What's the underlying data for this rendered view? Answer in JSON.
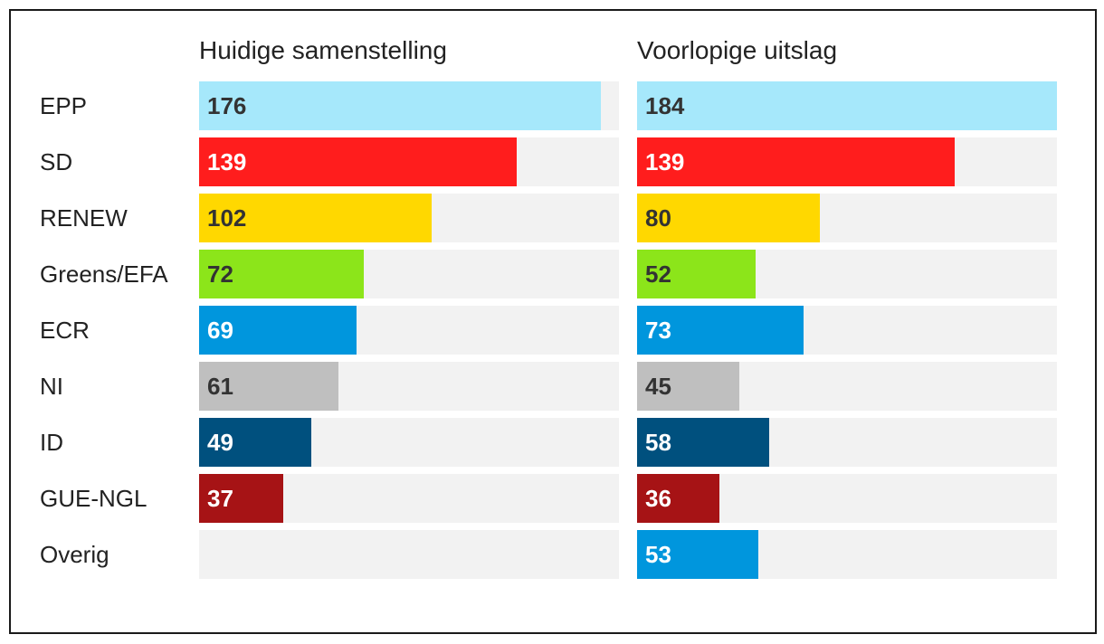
{
  "chart_data": {
    "type": "bar",
    "categories": [
      "EPP",
      "SD",
      "RENEW",
      "Greens/EFA",
      "ECR",
      "NI",
      "ID",
      "GUE-NGL",
      "Overig"
    ],
    "series": [
      {
        "name": "Huidige samenstelling",
        "values": [
          176,
          139,
          102,
          72,
          69,
          61,
          49,
          37,
          null
        ]
      },
      {
        "name": "Voorlopige uitslag",
        "values": [
          184,
          139,
          80,
          52,
          73,
          45,
          58,
          36,
          53
        ]
      }
    ],
    "xlim": [
      0,
      184
    ],
    "colors": [
      "#a6e8fb",
      "#ff1d1d",
      "#ffd800",
      "#8ce51a",
      "#0096dd",
      "#bfbfbf",
      "#00507e",
      "#a61315",
      "#0096dd"
    ],
    "label_colors": [
      "#333333",
      "#ffffff",
      "#333333",
      "#333333",
      "#ffffff",
      "#333333",
      "#ffffff",
      "#ffffff",
      "#ffffff"
    ],
    "track_color": "#f2f2f2"
  }
}
